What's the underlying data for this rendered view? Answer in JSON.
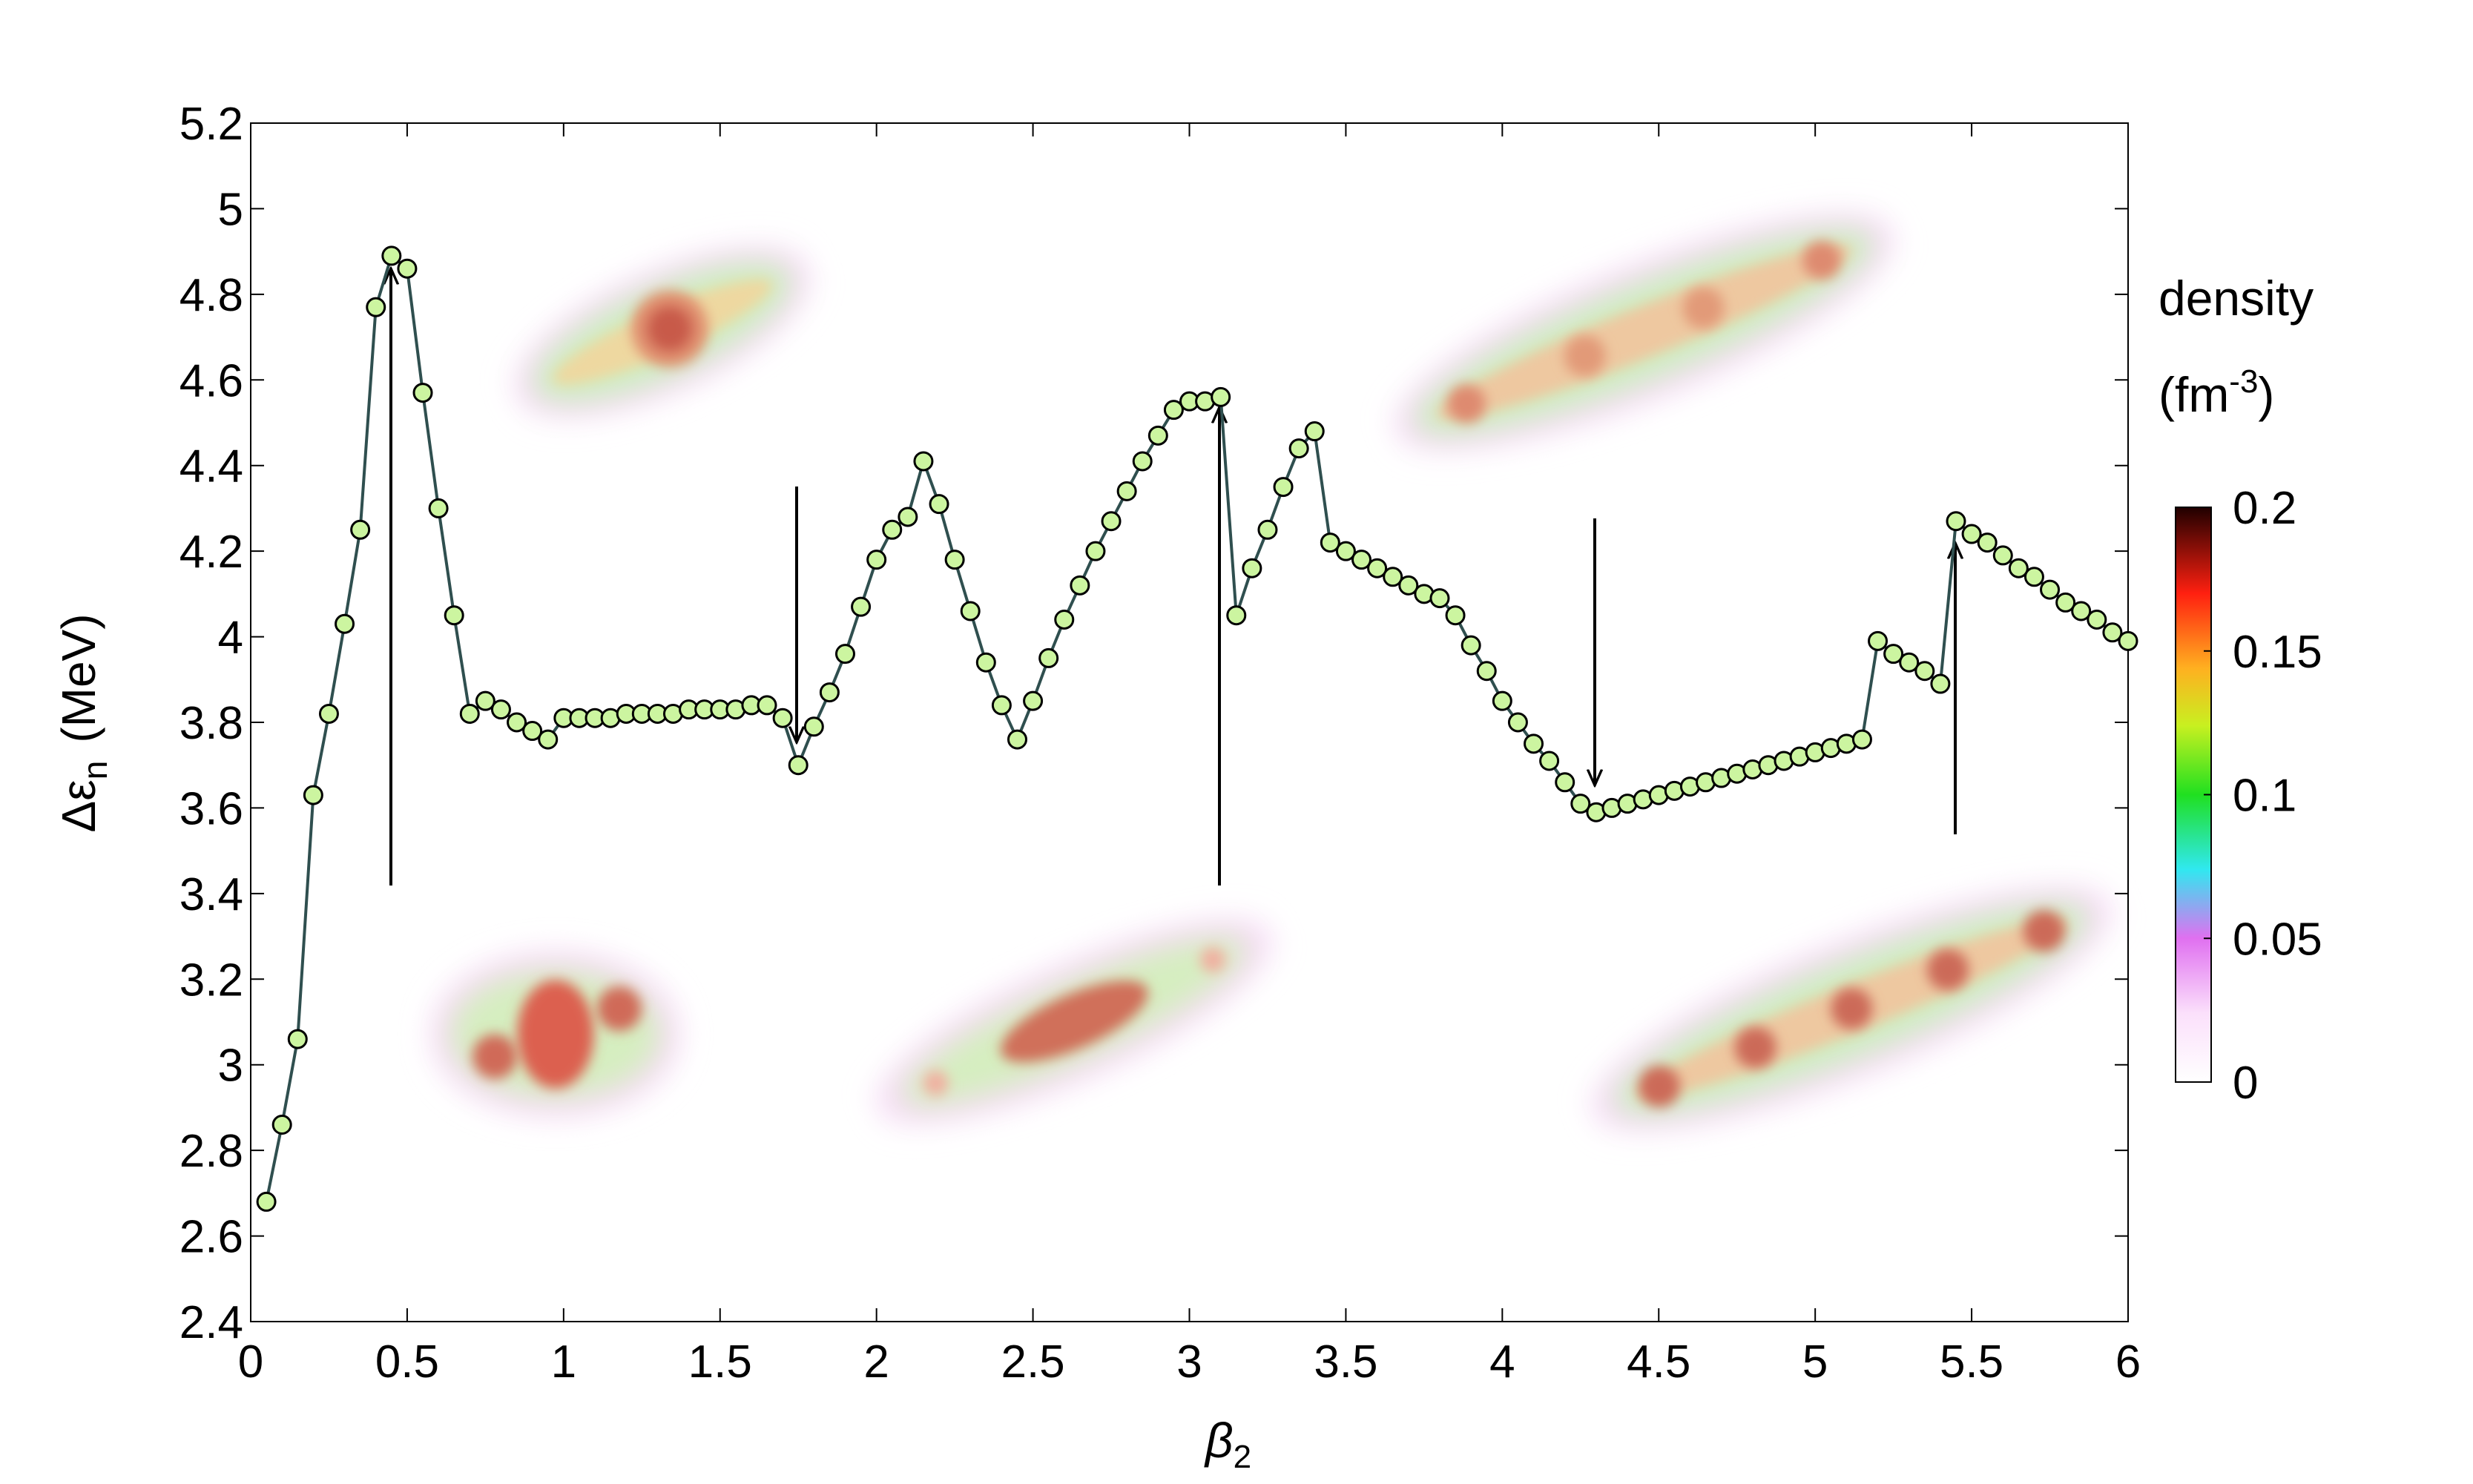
{
  "chart_data": {
    "type": "line",
    "x_label": {
      "main": "β",
      "sub": "2"
    },
    "y_label": {
      "main": "Δε",
      "sub": "n",
      "unit": "(MeV)"
    },
    "xlim": [
      0,
      6
    ],
    "ylim": [
      2.4,
      5.2
    ],
    "xticks": [
      0,
      0.5,
      1,
      1.5,
      2,
      2.5,
      3,
      3.5,
      4,
      4.5,
      5,
      5.5,
      6
    ],
    "yticks": [
      2.4,
      2.6,
      2.8,
      3,
      3.2,
      3.4,
      3.6,
      3.8,
      4,
      4.2,
      4.4,
      4.6,
      4.8,
      5,
      5.2
    ],
    "line_color": "#2f4f4f",
    "marker_color": "#ccf5a0",
    "x": [
      0.05,
      0.1,
      0.15,
      0.2,
      0.25,
      0.3,
      0.35,
      0.4,
      0.45,
      0.5,
      0.55,
      0.6,
      0.65,
      0.7,
      0.75,
      0.8,
      0.85,
      0.9,
      0.95,
      1.0,
      1.05,
      1.1,
      1.15,
      1.2,
      1.25,
      1.3,
      1.35,
      1.4,
      1.45,
      1.5,
      1.55,
      1.6,
      1.65,
      1.7,
      1.75,
      1.8,
      1.85,
      1.9,
      1.95,
      2.0,
      2.05,
      2.1,
      2.15,
      2.2,
      2.25,
      2.3,
      2.35,
      2.4,
      2.45,
      2.5,
      2.55,
      2.6,
      2.65,
      2.7,
      2.75,
      2.8,
      2.85,
      2.9,
      2.95,
      3.0,
      3.05,
      3.1,
      3.15,
      3.2,
      3.25,
      3.3,
      3.35,
      3.4,
      3.45,
      3.5,
      3.55,
      3.6,
      3.65,
      3.7,
      3.75,
      3.8,
      3.85,
      3.9,
      3.95,
      4.0,
      4.05,
      4.1,
      4.15,
      4.2,
      4.25,
      4.3,
      4.35,
      4.4,
      4.45,
      4.5,
      4.55,
      4.6,
      4.65,
      4.7,
      4.75,
      4.8,
      4.85,
      4.9,
      4.95,
      5.0,
      5.05,
      5.1,
      5.15,
      5.2,
      5.25,
      5.3,
      5.35,
      5.4,
      5.45,
      5.5,
      5.55,
      5.6,
      5.65,
      5.7,
      5.75,
      5.8,
      5.85,
      5.9,
      5.95,
      6.0
    ],
    "values": [
      2.68,
      2.86,
      3.06,
      3.63,
      3.82,
      4.03,
      4.25,
      4.77,
      4.89,
      4.86,
      4.57,
      4.3,
      4.05,
      3.82,
      3.85,
      3.83,
      3.8,
      3.78,
      3.76,
      3.81,
      3.81,
      3.81,
      3.81,
      3.82,
      3.82,
      3.82,
      3.82,
      3.83,
      3.83,
      3.83,
      3.83,
      3.84,
      3.84,
      3.81,
      3.7,
      3.79,
      3.87,
      3.96,
      4.07,
      4.18,
      4.25,
      4.28,
      4.41,
      4.31,
      4.18,
      4.06,
      3.94,
      3.84,
      3.76,
      3.85,
      3.95,
      4.04,
      4.12,
      4.2,
      4.27,
      4.34,
      4.41,
      4.47,
      4.53,
      4.55,
      4.55,
      4.56,
      4.05,
      4.16,
      4.25,
      4.35,
      4.44,
      4.48,
      4.22,
      4.2,
      4.18,
      4.16,
      4.14,
      4.12,
      4.1,
      4.09,
      4.05,
      3.98,
      3.92,
      3.85,
      3.8,
      3.75,
      3.71,
      3.66,
      3.61,
      3.59,
      3.6,
      3.61,
      3.62,
      3.63,
      3.64,
      3.65,
      3.66,
      3.67,
      3.68,
      3.69,
      3.7,
      3.71,
      3.72,
      3.73,
      3.74,
      3.75,
      3.76,
      3.99,
      3.96,
      3.94,
      3.92,
      3.89,
      4.27,
      4.24,
      4.22,
      4.19,
      4.16,
      4.14,
      4.11,
      4.08,
      4.06,
      4.04,
      4.01,
      3.99
    ],
    "colorbar": {
      "title": "density",
      "unit": [
        "(fm",
        "-3",
        ")"
      ],
      "lim": [
        0,
        0.2
      ],
      "ticks": [
        0,
        0.05,
        0.1,
        0.15,
        0.2
      ]
    }
  }
}
